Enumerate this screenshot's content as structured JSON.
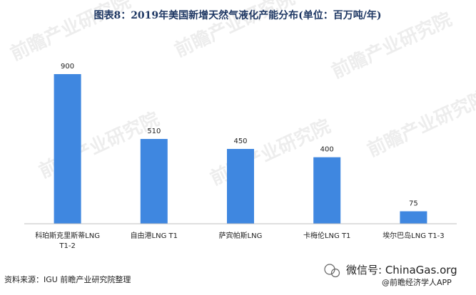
{
  "source": "资料来源：IGU 前瞻产业研究院整理",
  "watermarks": {
    "wechat": "微信号: ChinaGas.org",
    "brand": "@前瞻经济学人APP"
  },
  "chart_data": {
    "type": "bar",
    "title": "图表8：2019年美国新增天然气液化产能分布(单位：百万吨/年)",
    "categories": [
      [
        "科珀斯克里斯蒂LNG",
        "T1-2"
      ],
      [
        "自由港LNG T1"
      ],
      [
        "萨宾帕斯LNG"
      ],
      [
        "卡梅伦LNG T1"
      ],
      [
        "埃尔巴岛LNG T1-3"
      ]
    ],
    "values": [
      900,
      510,
      450,
      400,
      75
    ],
    "ylim": [
      0,
      1000
    ],
    "bar_color": "#3f87e0",
    "grid": false,
    "legend": "none"
  }
}
